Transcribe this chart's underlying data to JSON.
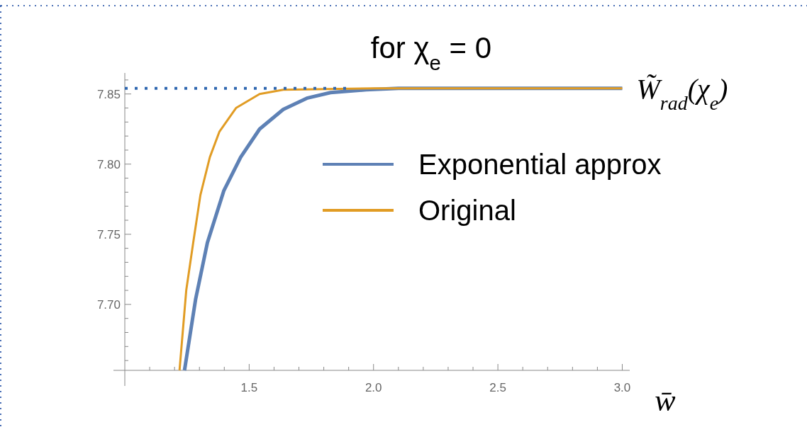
{
  "chart_data": {
    "type": "line",
    "title": "for   χ$_{e}$ = 0",
    "xlabel": "w̄",
    "xlim": [
      1.0,
      3.03
    ],
    "ylim": [
      7.653,
      7.865
    ],
    "xticks": [
      {
        "value": 1.1,
        "label": null
      },
      {
        "value": 1.2,
        "label": null
      },
      {
        "value": 1.3,
        "label": null
      },
      {
        "value": 1.4,
        "label": null
      },
      1.5,
      {
        "value": 1.6,
        "label": null
      },
      {
        "value": 1.7,
        "label": null
      },
      {
        "value": 1.8,
        "label": null
      },
      {
        "value": 1.9,
        "label": null
      },
      {
        "value": 2.0,
        "label": "2.0"
      },
      {
        "value": 2.1,
        "label": null
      },
      {
        "value": 2.2,
        "label": null
      },
      {
        "value": 2.3,
        "label": null
      },
      {
        "value": 2.4,
        "label": null
      },
      2.5,
      {
        "value": 2.6,
        "label": null
      },
      {
        "value": 2.7,
        "label": null
      },
      {
        "value": 2.8,
        "label": null
      },
      {
        "value": 2.9,
        "label": null
      },
      {
        "value": 3.0,
        "label": "3.0"
      }
    ],
    "yticks": [
      {
        "value": 7.66,
        "label": null
      },
      {
        "value": 7.67,
        "label": null
      },
      {
        "value": 7.68,
        "label": null
      },
      {
        "value": 7.69,
        "label": null
      },
      {
        "value": 7.7,
        "label": "7.70"
      },
      {
        "value": 7.71,
        "label": null
      },
      {
        "value": 7.72,
        "label": null
      },
      {
        "value": 7.73,
        "label": null
      },
      {
        "value": 7.74,
        "label": null
      },
      7.75,
      {
        "value": 7.76,
        "label": null
      },
      {
        "value": 7.77,
        "label": null
      },
      {
        "value": 7.78,
        "label": null
      },
      {
        "value": 7.79,
        "label": null
      },
      {
        "value": 7.8,
        "label": "7.80"
      },
      {
        "value": 7.81,
        "label": null
      },
      {
        "value": 7.82,
        "label": null
      },
      {
        "value": 7.83,
        "label": null
      },
      {
        "value": 7.84,
        "label": null
      },
      7.85,
      {
        "value": 7.86,
        "label": null
      }
    ],
    "series": [
      {
        "name": "Exponential approx",
        "color": "#5e81b5",
        "x": [
          1.24,
          1.285,
          1.332,
          1.398,
          1.466,
          1.542,
          1.637,
          1.732,
          1.827,
          1.97,
          2.1,
          3.0
        ],
        "values": [
          7.653,
          7.704,
          7.744,
          7.781,
          7.805,
          7.825,
          7.839,
          7.847,
          7.851,
          7.853,
          7.854,
          7.854
        ]
      },
      {
        "name": "Original",
        "color": "#e19c24",
        "x": [
          1.22,
          1.247,
          1.275,
          1.304,
          1.342,
          1.38,
          1.447,
          1.542,
          1.637,
          2.0,
          3.0
        ],
        "values": [
          7.653,
          7.71,
          7.744,
          7.778,
          7.805,
          7.823,
          7.84,
          7.85,
          7.853,
          7.854,
          7.854
        ]
      },
      {
        "color": "#2f67b0",
        "line_style": "dotted",
        "x": [
          1.0,
          1.9
        ],
        "values": [
          7.854,
          7.854
        ]
      }
    ],
    "annotations": [
      {
        "text": "W̃$_{rad}$(χ$_{e}$)",
        "x": 3.0,
        "y": 7.854
      }
    ],
    "legend": "right",
    "grid": false
  }
}
